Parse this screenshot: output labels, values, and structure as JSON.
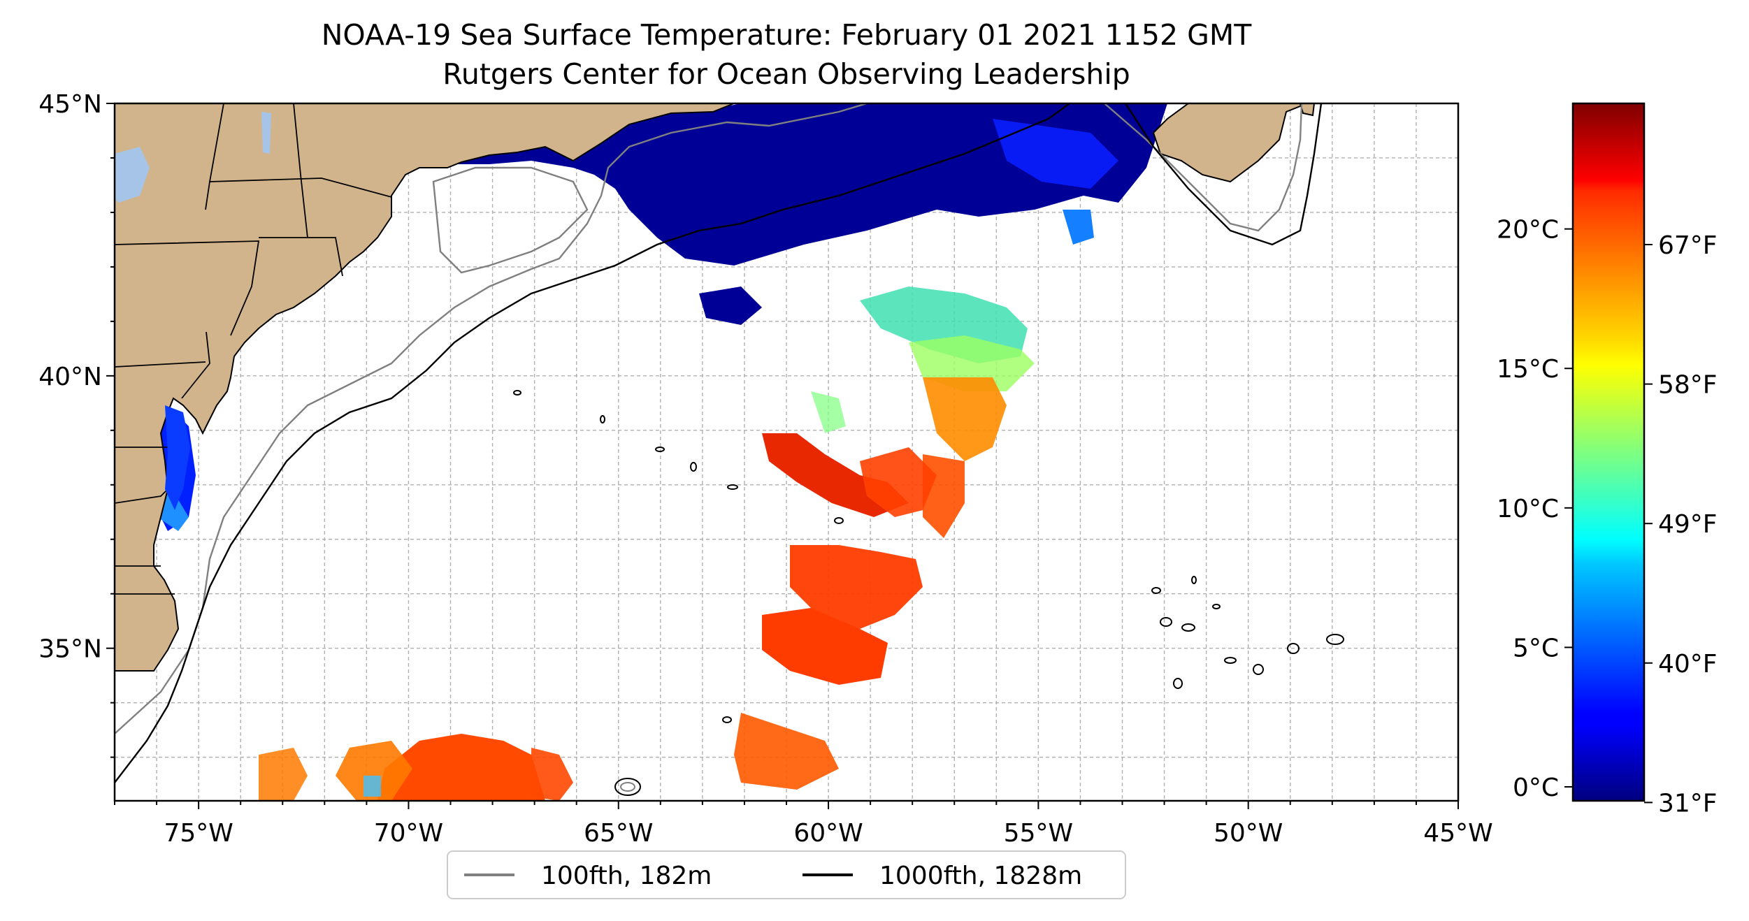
{
  "title": {
    "line1": "NOAA-19 Sea Surface Temperature: February 01 2021 1152 GMT",
    "line2": "Rutgers Center for Ocean Observing Leadership"
  },
  "map": {
    "lon_range": [
      -77,
      -45
    ],
    "lat_range": [
      32.2,
      45
    ],
    "lon_ticks": [
      {
        "value": -75,
        "label": "75°W"
      },
      {
        "value": -70,
        "label": "70°W"
      },
      {
        "value": -65,
        "label": "65°W"
      },
      {
        "value": -60,
        "label": "60°W"
      },
      {
        "value": -55,
        "label": "55°W"
      },
      {
        "value": -50,
        "label": "50°W"
      },
      {
        "value": -45,
        "label": "45°W"
      }
    ],
    "lat_ticks": [
      {
        "value": 45,
        "label": "45°N"
      },
      {
        "value": 40,
        "label": "40°N"
      },
      {
        "value": 35,
        "label": "35°N"
      }
    ],
    "grid": true,
    "grid_step_deg": 1,
    "land_color": "#d2b48c",
    "coastline_color": "#000000",
    "lake_color": "#a6c4e8"
  },
  "legend": {
    "placement": "below-center",
    "items": [
      {
        "label": "100fth, 182m",
        "color": "#808080"
      },
      {
        "label": "1000fth, 1828m",
        "color": "#000000"
      }
    ]
  },
  "colorbar": {
    "colormap": "jet",
    "range_c": [
      -0.5,
      24.5
    ],
    "celsius_ticks": [
      {
        "value": 0,
        "label": "0°C"
      },
      {
        "value": 5,
        "label": "5°C"
      },
      {
        "value": 10,
        "label": "10°C"
      },
      {
        "value": 15,
        "label": "15°C"
      },
      {
        "value": 20,
        "label": "20°C"
      }
    ],
    "fahrenheit_ticks": [
      {
        "value_c": -0.56,
        "label": "31°F"
      },
      {
        "value_c": 4.44,
        "label": "40°F"
      },
      {
        "value_c": 9.44,
        "label": "49°F"
      },
      {
        "value_c": 14.44,
        "label": "58°F"
      },
      {
        "value_c": 19.44,
        "label": "67°F"
      }
    ]
  }
}
